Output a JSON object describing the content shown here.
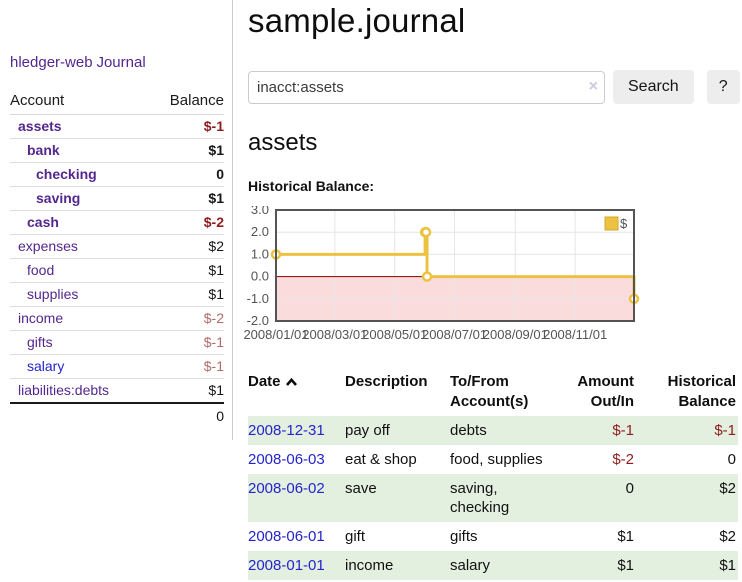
{
  "sidebar": {
    "brand": "hledger-web",
    "journal_link": "Journal",
    "columns": [
      "Account",
      "Balance"
    ],
    "accounts": [
      {
        "name": "assets",
        "depth": 0,
        "bold": true,
        "balance": "$-1",
        "balance_color": "neg-strong"
      },
      {
        "name": "bank",
        "depth": 1,
        "bold": true,
        "balance": "$1",
        "balance_color": "normal"
      },
      {
        "name": "checking",
        "depth": 2,
        "bold": true,
        "balance": "0",
        "balance_color": "normal"
      },
      {
        "name": "saving",
        "depth": 2,
        "bold": true,
        "balance": "$1",
        "balance_color": "normal"
      },
      {
        "name": "cash",
        "depth": 1,
        "bold": true,
        "balance": "$-2",
        "balance_color": "neg-strong"
      },
      {
        "name": "expenses",
        "depth": 0,
        "bold": false,
        "balance": "$2",
        "balance_color": "normal"
      },
      {
        "name": "food",
        "depth": 1,
        "bold": false,
        "balance": "$1",
        "balance_color": "normal"
      },
      {
        "name": "supplies",
        "depth": 1,
        "bold": false,
        "balance": "$1",
        "balance_color": "normal"
      },
      {
        "name": "income",
        "depth": 0,
        "bold": false,
        "balance": "$-2",
        "balance_color": "neg-soft"
      },
      {
        "name": "gifts",
        "depth": 1,
        "bold": false,
        "balance": "$-1",
        "balance_color": "neg-soft"
      },
      {
        "name": "salary",
        "depth": 1,
        "bold": false,
        "balance": "$-1",
        "balance_color": "neg-soft",
        "link_color": "blue"
      },
      {
        "name": "liabilities:debts",
        "depth": 0,
        "bold": false,
        "balance": "$1",
        "balance_color": "normal"
      }
    ],
    "total": "0"
  },
  "header": {
    "title": "sample.journal"
  },
  "search": {
    "value": "inacct:assets",
    "clear_icon": "×",
    "button_label": "Search",
    "help_label": "?"
  },
  "account_page": {
    "heading": "assets",
    "chart_label": "Historical Balance:"
  },
  "chart_data": {
    "type": "line",
    "step": true,
    "title": "Historical Balance",
    "legend": "$",
    "legend_position": "top-right",
    "series": [
      {
        "name": "$",
        "color": "#edc240",
        "x_dates": [
          "2008-01-01",
          "2008-06-01",
          "2008-06-02",
          "2008-06-03",
          "2008-12-31"
        ],
        "x_days": [
          1,
          153,
          154,
          155,
          366
        ],
        "values": [
          1,
          2,
          2,
          0,
          -1
        ]
      }
    ],
    "xlim_days": [
      1,
      366
    ],
    "ylim": [
      -2,
      3
    ],
    "y_ticks": [
      3.0,
      2.0,
      1.0,
      0.0,
      -1.0,
      -2.0
    ],
    "x_tick_days": [
      1,
      61,
      122,
      183,
      245,
      306
    ],
    "x_tick_labels": [
      "2008/01/01",
      "2008/03/01",
      "2008/05/01",
      "2008/07/01",
      "2008/09/01",
      "2008/11/01"
    ],
    "grid": true,
    "colors": {
      "grid": "#e6e6e6",
      "border": "#545454",
      "zero_line": "#8b0000",
      "negative_region": "#fbdcdc",
      "tick_text": "#545454",
      "legend_swatch_border": "#cda935"
    }
  },
  "register": {
    "columns": [
      "Date",
      "Description",
      "To/From Account(s)",
      "Amount Out/In",
      "Historical Balance"
    ],
    "rows": [
      {
        "date": "2008-12-31",
        "description": "pay off",
        "accounts": "debts",
        "amount": "$-1",
        "amount_neg": true,
        "balance": "$-1",
        "balance_neg": true,
        "shade": true
      },
      {
        "date": "2008-06-03",
        "description": "eat & shop",
        "accounts": "food, supplies",
        "amount": "$-2",
        "amount_neg": true,
        "balance": "0",
        "balance_neg": false,
        "shade": false
      },
      {
        "date": "2008-06-02",
        "description": "save",
        "accounts": "saving, checking",
        "amount": "0",
        "amount_neg": false,
        "balance": "$2",
        "balance_neg": false,
        "shade": true
      },
      {
        "date": "2008-06-01",
        "description": "gift",
        "accounts": "gifts",
        "amount": "$1",
        "amount_neg": false,
        "balance": "$2",
        "balance_neg": false,
        "shade": false
      },
      {
        "date": "2008-01-01",
        "description": "income",
        "accounts": "salary",
        "amount": "$1",
        "amount_neg": false,
        "balance": "$1",
        "balance_neg": false,
        "shade": true
      }
    ]
  }
}
